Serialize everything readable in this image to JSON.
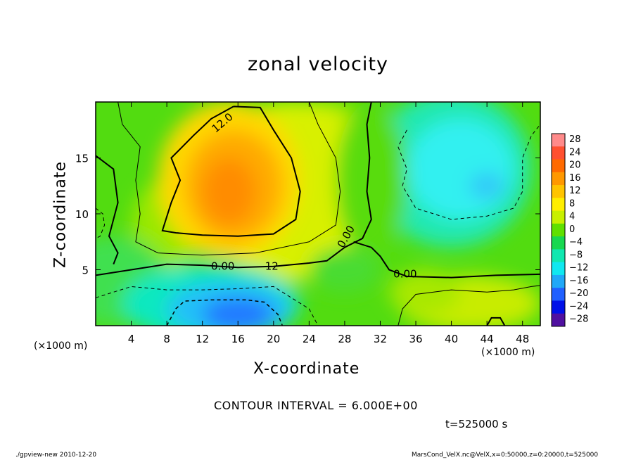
{
  "chart_data": {
    "type": "heatmap",
    "title": "zonal velocity",
    "xlabel": "X-coordinate",
    "ylabel": "Z-coordinate",
    "x_unit": "(×1000 m)",
    "y_unit": "(×1000 m)",
    "xlim": [
      0,
      50
    ],
    "ylim": [
      0,
      20
    ],
    "x_ticks": [
      4,
      8,
      12,
      16,
      20,
      24,
      28,
      32,
      36,
      40,
      44,
      48
    ],
    "y_ticks": [
      5,
      10,
      15
    ],
    "colorbar": {
      "levels": [
        28,
        24,
        20,
        16,
        12,
        8,
        4,
        0,
        -4,
        -8,
        -12,
        -16,
        -20,
        -24,
        -28
      ],
      "labels": [
        "28",
        "24",
        "20",
        "16",
        "12",
        "8",
        "4",
        "0",
        "−4",
        "−8",
        "−12",
        "−16",
        "−20",
        "−24",
        "−28"
      ],
      "colors": [
        "#ff8a8a",
        "#ff5030",
        "#ff6a00",
        "#ff9800",
        "#ffc400",
        "#ffee00",
        "#c8f000",
        "#60e000",
        "#18d850",
        "#10e8b0",
        "#10e8f0",
        "#20a8f8",
        "#2060ff",
        "#0010e8",
        "#5010a0"
      ]
    },
    "contour_labels": [
      "12.0",
      "0.00",
      "12",
      "0.00",
      "0.00"
    ],
    "contour_interval": "CONTOUR INTERVAL = 6.000E+00",
    "time": "t=525000 s",
    "max_value_approx": 18,
    "min_value_approx": -18
  },
  "footer": {
    "left": "./gpview-new  2010-12-20",
    "right": "MarsCond_VelX.nc@VelX,x=0:50000,z=0:20000,t=525000"
  }
}
